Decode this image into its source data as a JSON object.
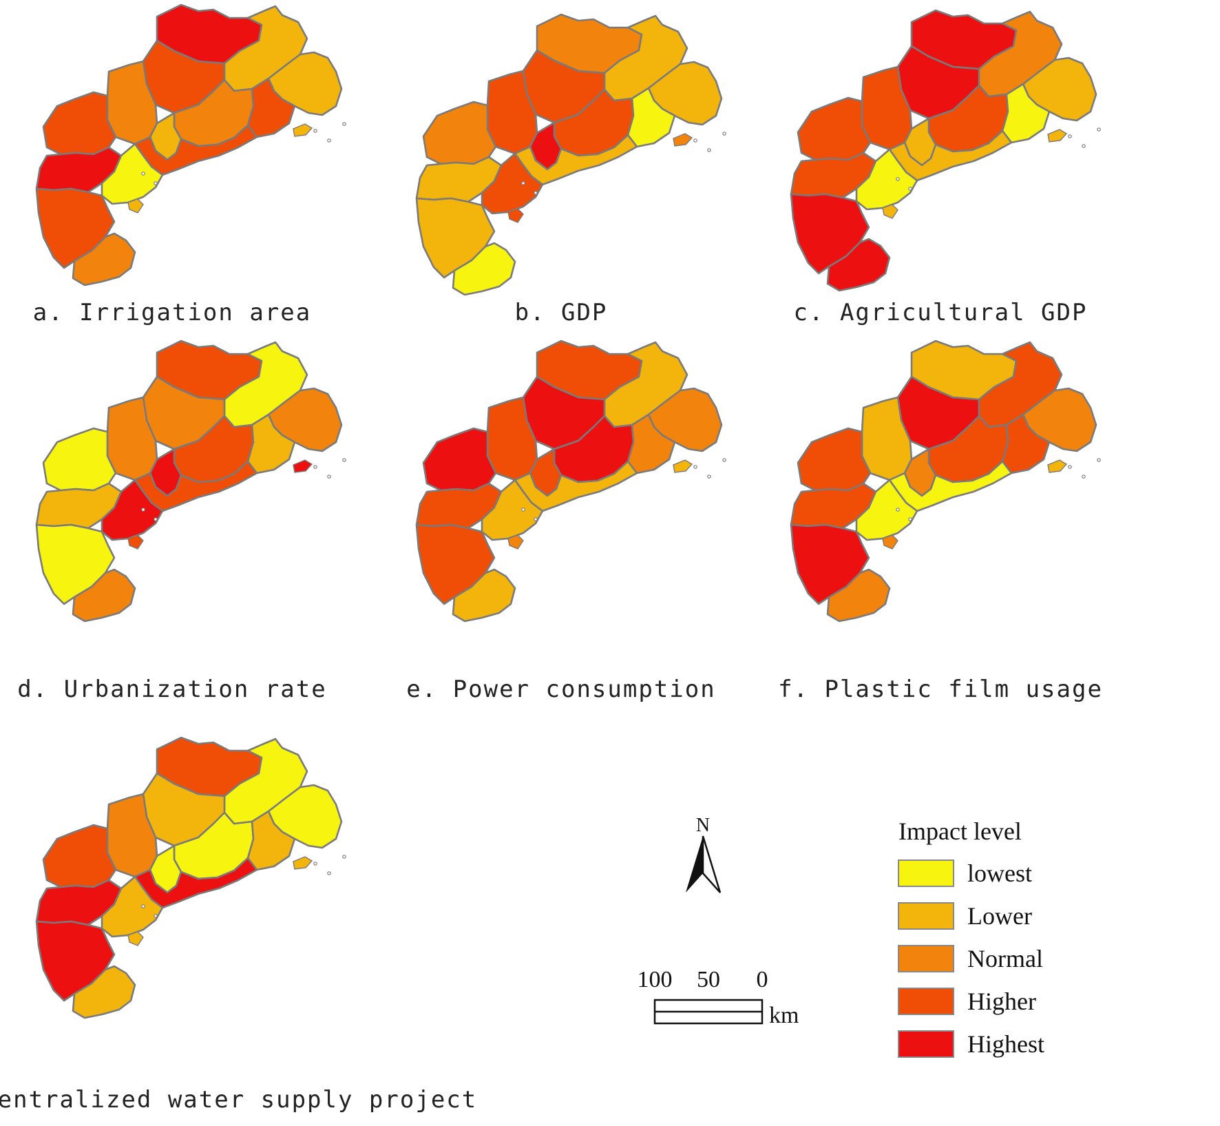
{
  "legend": {
    "title": "Impact level",
    "levels": [
      {
        "key": "lowest",
        "label": "lowest",
        "color": "#f7f50f"
      },
      {
        "key": "lower",
        "label": "Lower",
        "color": "#f3b50b"
      },
      {
        "key": "normal",
        "label": "Normal",
        "color": "#f2830d"
      },
      {
        "key": "higher",
        "label": "Higher",
        "color": "#f04d06"
      },
      {
        "key": "highest",
        "label": "Highest",
        "color": "#ec1010"
      }
    ]
  },
  "scale_bar": {
    "ticks": [
      "100",
      "50",
      "0"
    ],
    "unit": "km"
  },
  "north_arrow": {
    "letter": "N",
    "icon": "north-arrow-icon"
  },
  "panels": [
    {
      "id": "a",
      "caption": "a. Irrigation area",
      "levels": {
        "north_center": "highest",
        "northeast_large": "lower",
        "east_coast": "lower",
        "north_middle": "higher",
        "center_west": "normal",
        "center": "normal",
        "center_south": "lower",
        "east_middle": "higher",
        "west": "higher",
        "southwest_upper": "highest",
        "coast_strip": "higher",
        "bay_cluster": "lowest",
        "peninsula": "higher",
        "south_tip": "normal",
        "east_island": "lower",
        "bay_island": "lower"
      }
    },
    {
      "id": "b",
      "caption": "b. GDP",
      "levels": {
        "north_center": "normal",
        "northeast_large": "lower",
        "east_coast": "lower",
        "north_middle": "higher",
        "center_west": "higher",
        "center": "higher",
        "center_south": "highest",
        "east_middle": "lowest",
        "west": "normal",
        "southwest_upper": "lower",
        "coast_strip": "lower",
        "bay_cluster": "higher",
        "peninsula": "lower",
        "south_tip": "lowest",
        "east_island": "normal",
        "bay_island": "higher"
      }
    },
    {
      "id": "c",
      "caption": "c. Agricultural GDP",
      "levels": {
        "north_center": "highest",
        "northeast_large": "normal",
        "east_coast": "lower",
        "north_middle": "highest",
        "center_west": "higher",
        "center": "higher",
        "center_south": "lower",
        "east_middle": "lowest",
        "west": "higher",
        "southwest_upper": "higher",
        "coast_strip": "lower",
        "bay_cluster": "lowest",
        "peninsula": "highest",
        "south_tip": "highest",
        "east_island": "lower",
        "bay_island": "lower"
      }
    },
    {
      "id": "d",
      "caption": "d. Urbanization rate",
      "levels": {
        "north_center": "higher",
        "northeast_large": "lowest",
        "east_coast": "normal",
        "north_middle": "normal",
        "center_west": "normal",
        "center": "higher",
        "center_south": "highest",
        "east_middle": "lower",
        "west": "lowest",
        "southwest_upper": "lower",
        "coast_strip": "higher",
        "bay_cluster": "highest",
        "peninsula": "lowest",
        "south_tip": "normal",
        "east_island": "highest",
        "bay_island": "higher"
      }
    },
    {
      "id": "e",
      "caption": "e. Power consumption",
      "levels": {
        "north_center": "higher",
        "northeast_large": "lower",
        "east_coast": "normal",
        "north_middle": "highest",
        "center_west": "higher",
        "center": "highest",
        "center_south": "higher",
        "east_middle": "normal",
        "west": "highest",
        "southwest_upper": "higher",
        "coast_strip": "lower",
        "bay_cluster": "lower",
        "peninsula": "higher",
        "south_tip": "lower",
        "east_island": "lower",
        "bay_island": "normal"
      }
    },
    {
      "id": "f",
      "caption": "f. Plastic film usage",
      "levels": {
        "north_center": "lower",
        "northeast_large": "higher",
        "east_coast": "normal",
        "north_middle": "highest",
        "center_west": "lower",
        "center": "higher",
        "center_south": "normal",
        "east_middle": "higher",
        "west": "higher",
        "southwest_upper": "higher",
        "coast_strip": "lowest",
        "bay_cluster": "lowest",
        "peninsula": "highest",
        "south_tip": "normal",
        "east_island": "lower",
        "bay_island": "normal"
      }
    },
    {
      "id": "g",
      "caption": "g. Centralized water supply project",
      "levels": {
        "north_center": "higher",
        "northeast_large": "lowest",
        "east_coast": "lowest",
        "north_middle": "lower",
        "center_west": "normal",
        "center": "lowest",
        "center_south": "lowest",
        "east_middle": "lower",
        "west": "higher",
        "southwest_upper": "highest",
        "coast_strip": "highest",
        "bay_cluster": "lower",
        "peninsula": "highest",
        "south_tip": "lower",
        "east_island": "lower",
        "bay_island": "lower"
      }
    }
  ]
}
